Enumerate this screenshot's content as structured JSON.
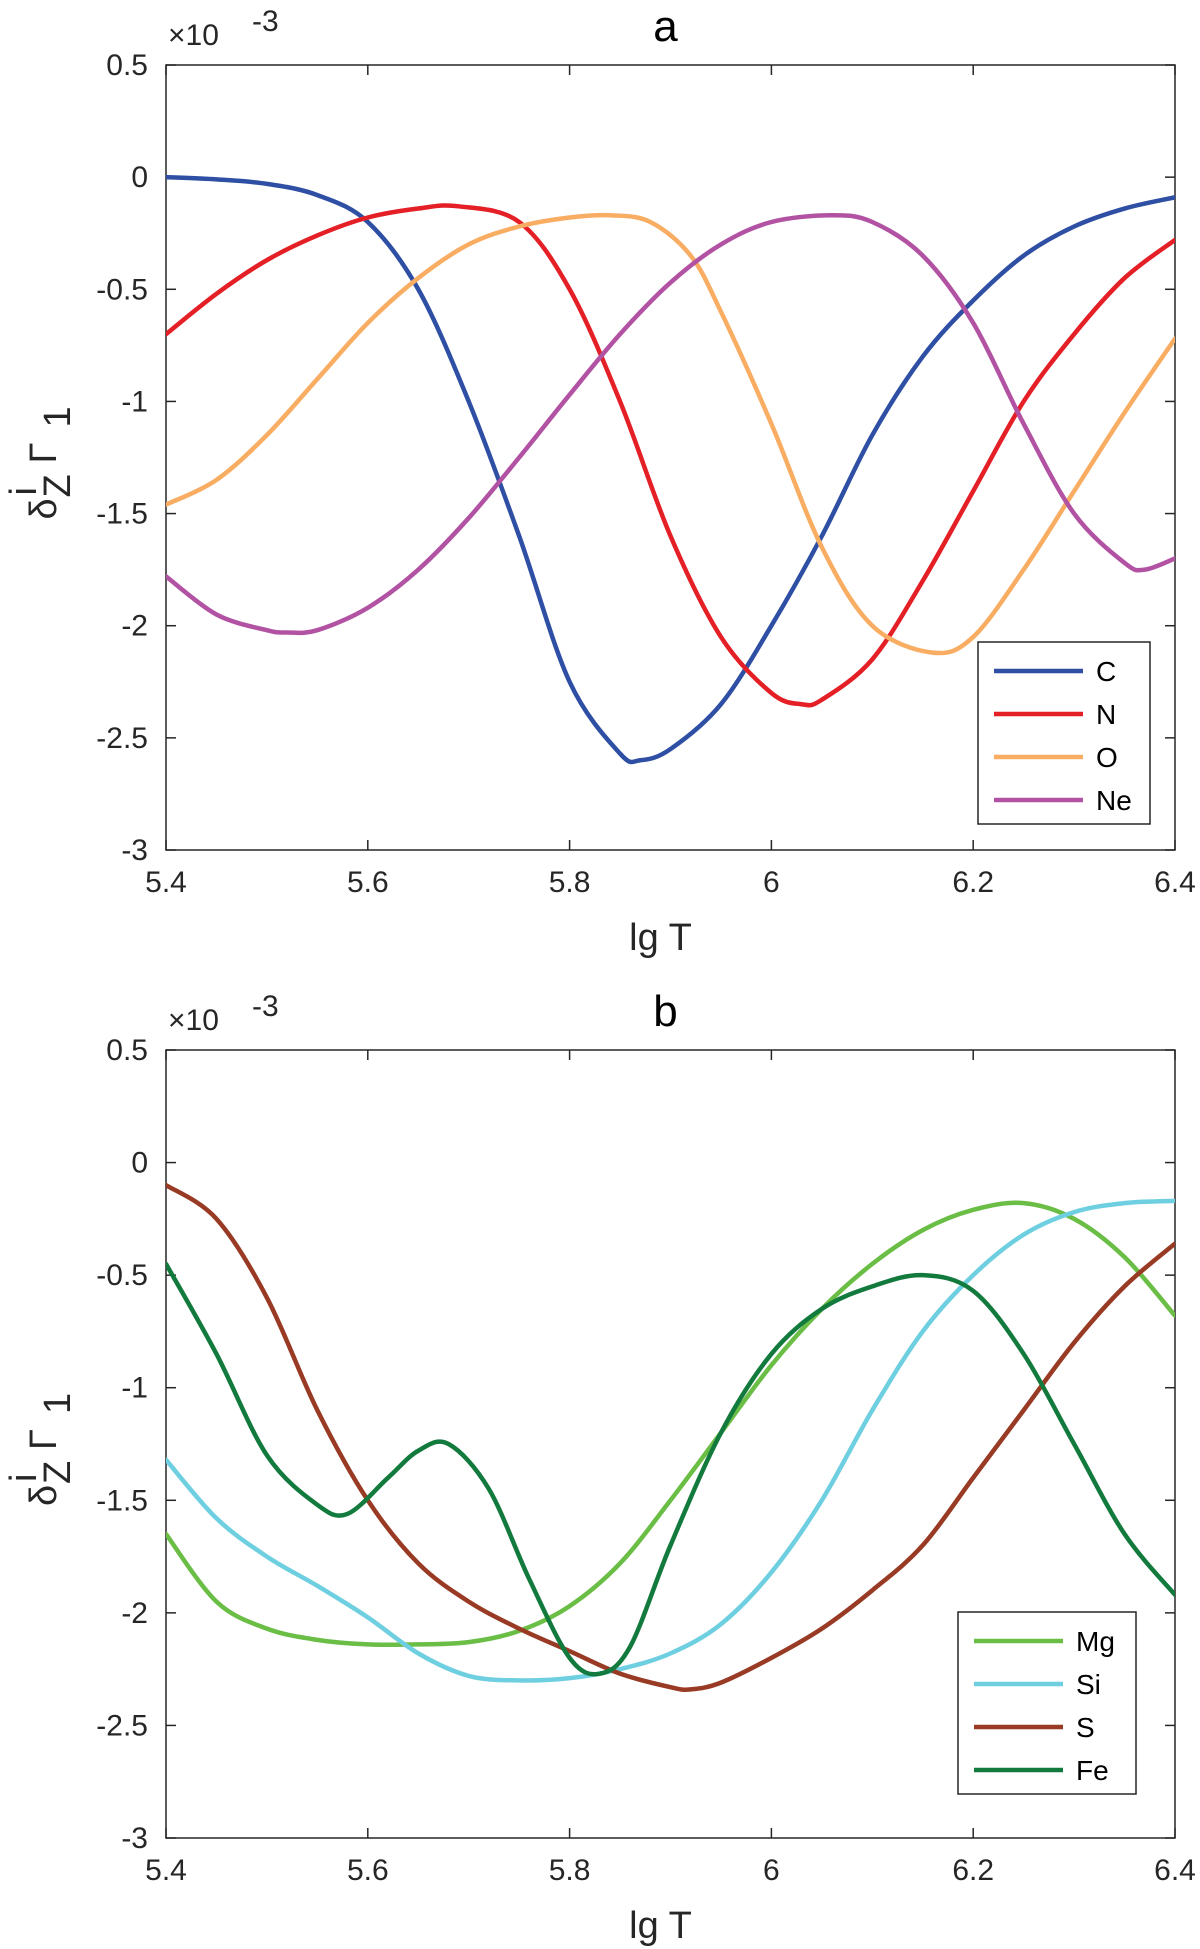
{
  "chart_data": [
    {
      "type": "line",
      "title": "a",
      "xlabel": "lg T",
      "ylabel_main": "δ",
      "ylabel_sup": "i",
      "ylabel_sub": "Z",
      "ylabel_gamma": "Γ",
      "ylabel_gamma_sub": "1",
      "y_multiplier": "×10",
      "y_multiplier_exp": "-3",
      "xlim": [
        5.4,
        6.4
      ],
      "ylim": [
        -3,
        0.5
      ],
      "xticks": [
        5.4,
        5.6,
        5.8,
        6,
        6.2,
        6.4
      ],
      "xtick_labels": [
        "5.4",
        "5.6",
        "5.8",
        "6",
        "6.2",
        "6.4"
      ],
      "yticks": [
        0.5,
        0,
        -0.5,
        -1,
        -1.5,
        -2,
        -2.5,
        -3
      ],
      "ytick_labels": [
        "0.5",
        "0",
        "-0.5",
        "-1",
        "-1.5",
        "-2",
        "-2.5",
        "-3"
      ],
      "grid": false,
      "legend_position": "bottom-right",
      "series": [
        {
          "name": "C",
          "color": "#2e4fa3",
          "x": [
            5.4,
            5.45,
            5.5,
            5.55,
            5.6,
            5.65,
            5.7,
            5.75,
            5.8,
            5.85,
            5.87,
            5.9,
            5.95,
            6.0,
            6.05,
            6.1,
            6.15,
            6.2,
            6.25,
            6.3,
            6.35,
            6.4
          ],
          "y": [
            0.0,
            -0.01,
            -0.03,
            -0.08,
            -0.2,
            -0.5,
            -1.0,
            -1.6,
            -2.25,
            -2.57,
            -2.6,
            -2.55,
            -2.35,
            -2.0,
            -1.6,
            -1.15,
            -0.8,
            -0.55,
            -0.35,
            -0.22,
            -0.14,
            -0.09
          ]
        },
        {
          "name": "N",
          "color": "#e41f26",
          "x": [
            5.4,
            5.45,
            5.5,
            5.55,
            5.6,
            5.65,
            5.69,
            5.75,
            5.8,
            5.85,
            5.9,
            5.95,
            6.0,
            6.03,
            6.05,
            6.1,
            6.15,
            6.2,
            6.25,
            6.3,
            6.35,
            6.4
          ],
          "y": [
            -0.7,
            -0.52,
            -0.37,
            -0.26,
            -0.18,
            -0.14,
            -0.13,
            -0.2,
            -0.5,
            -1.0,
            -1.6,
            -2.05,
            -2.3,
            -2.35,
            -2.33,
            -2.15,
            -1.8,
            -1.4,
            -1.0,
            -0.7,
            -0.45,
            -0.28
          ]
        },
        {
          "name": "O",
          "color": "#f9ad63",
          "x": [
            5.4,
            5.45,
            5.5,
            5.55,
            5.6,
            5.65,
            5.7,
            5.75,
            5.8,
            5.84,
            5.88,
            5.92,
            5.95,
            6.0,
            6.05,
            6.1,
            6.16,
            6.2,
            6.25,
            6.3,
            6.35,
            6.4
          ],
          "y": [
            -1.46,
            -1.35,
            -1.15,
            -0.9,
            -0.65,
            -0.45,
            -0.3,
            -0.22,
            -0.18,
            -0.17,
            -0.2,
            -0.35,
            -0.6,
            -1.1,
            -1.65,
            -2.0,
            -2.12,
            -2.05,
            -1.75,
            -1.4,
            -1.05,
            -0.72
          ]
        },
        {
          "name": "Ne",
          "color": "#b252a3",
          "x": [
            5.4,
            5.45,
            5.5,
            5.52,
            5.55,
            5.6,
            5.65,
            5.7,
            5.75,
            5.8,
            5.85,
            5.9,
            5.95,
            6.0,
            6.06,
            6.1,
            6.15,
            6.2,
            6.25,
            6.3,
            6.35,
            6.37,
            6.4
          ],
          "y": [
            -1.78,
            -1.95,
            -2.02,
            -2.03,
            -2.02,
            -1.92,
            -1.75,
            -1.52,
            -1.25,
            -0.97,
            -0.7,
            -0.47,
            -0.3,
            -0.2,
            -0.17,
            -0.2,
            -0.35,
            -0.65,
            -1.1,
            -1.5,
            -1.72,
            -1.75,
            -1.7
          ]
        }
      ]
    },
    {
      "type": "line",
      "title": "b",
      "xlabel": "lg T",
      "ylabel_main": "δ",
      "ylabel_sup": "i",
      "ylabel_sub": "Z",
      "ylabel_gamma": "Γ",
      "ylabel_gamma_sub": "1",
      "y_multiplier": "×10",
      "y_multiplier_exp": "-3",
      "xlim": [
        5.4,
        6.4
      ],
      "ylim": [
        -3,
        0.5
      ],
      "xticks": [
        5.4,
        5.6,
        5.8,
        6,
        6.2,
        6.4
      ],
      "xtick_labels": [
        "5.4",
        "5.6",
        "5.8",
        "6",
        "6.2",
        "6.4"
      ],
      "yticks": [
        0.5,
        0,
        -0.5,
        -1,
        -1.5,
        -2,
        -2.5,
        -3
      ],
      "ytick_labels": [
        "0.5",
        "0",
        "-0.5",
        "-1",
        "-1.5",
        "-2",
        "-2.5",
        "-3"
      ],
      "grid": false,
      "legend_position": "bottom-right",
      "series": [
        {
          "name": "Mg",
          "color": "#6abd45",
          "x": [
            5.4,
            5.45,
            5.5,
            5.55,
            5.6,
            5.65,
            5.7,
            5.75,
            5.8,
            5.85,
            5.9,
            5.95,
            6.0,
            6.05,
            6.1,
            6.15,
            6.2,
            6.25,
            6.3,
            6.35,
            6.4
          ],
          "y": [
            -1.65,
            -1.95,
            -2.07,
            -2.12,
            -2.14,
            -2.14,
            -2.13,
            -2.08,
            -1.97,
            -1.78,
            -1.5,
            -1.2,
            -0.9,
            -0.65,
            -0.45,
            -0.3,
            -0.21,
            -0.18,
            -0.25,
            -0.42,
            -0.68
          ]
        },
        {
          "name": "Si",
          "color": "#6dcfdf",
          "x": [
            5.4,
            5.45,
            5.5,
            5.55,
            5.6,
            5.65,
            5.7,
            5.75,
            5.8,
            5.85,
            5.9,
            5.95,
            6.0,
            6.05,
            6.1,
            6.15,
            6.2,
            6.25,
            6.3,
            6.35,
            6.4
          ],
          "y": [
            -1.32,
            -1.58,
            -1.75,
            -1.88,
            -2.02,
            -2.18,
            -2.28,
            -2.3,
            -2.29,
            -2.25,
            -2.18,
            -2.05,
            -1.82,
            -1.5,
            -1.1,
            -0.75,
            -0.5,
            -0.32,
            -0.22,
            -0.18,
            -0.17
          ]
        },
        {
          "name": "S",
          "color": "#983a24",
          "x": [
            5.4,
            5.45,
            5.5,
            5.55,
            5.6,
            5.65,
            5.7,
            5.75,
            5.8,
            5.85,
            5.9,
            5.92,
            5.95,
            6.0,
            6.05,
            6.1,
            6.15,
            6.2,
            6.25,
            6.3,
            6.35,
            6.4
          ],
          "y": [
            -0.1,
            -0.25,
            -0.6,
            -1.1,
            -1.5,
            -1.78,
            -1.95,
            -2.07,
            -2.17,
            -2.27,
            -2.33,
            -2.34,
            -2.31,
            -2.2,
            -2.07,
            -1.9,
            -1.7,
            -1.4,
            -1.1,
            -0.8,
            -0.55,
            -0.36
          ]
        },
        {
          "name": "Fe",
          "color": "#137a3e",
          "x": [
            5.4,
            5.45,
            5.5,
            5.55,
            5.58,
            5.62,
            5.65,
            5.68,
            5.72,
            5.76,
            5.8,
            5.83,
            5.86,
            5.9,
            5.95,
            6.0,
            6.05,
            6.1,
            6.15,
            6.2,
            6.25,
            6.3,
            6.35,
            6.4
          ],
          "y": [
            -0.45,
            -0.85,
            -1.3,
            -1.52,
            -1.56,
            -1.4,
            -1.28,
            -1.25,
            -1.45,
            -1.85,
            -2.2,
            -2.27,
            -2.15,
            -1.7,
            -1.2,
            -0.85,
            -0.65,
            -0.55,
            -0.5,
            -0.57,
            -0.85,
            -1.25,
            -1.65,
            -1.92
          ]
        }
      ]
    }
  ]
}
